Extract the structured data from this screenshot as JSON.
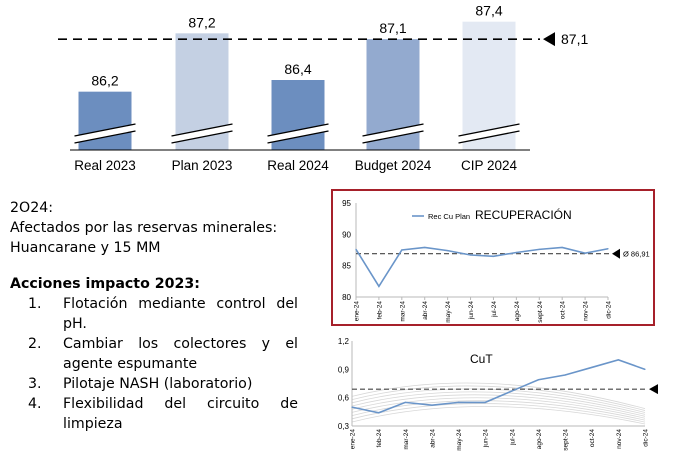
{
  "text": {
    "year_heading": "2O24:",
    "affected_text": "Afectados por las reservas minerales: Huancarane y 15 MM",
    "actions_heading": "Acciones impacto 2023:",
    "actions": [
      {
        "number": "1.",
        "text": "Flotación mediante control del pH."
      },
      {
        "number": "2.",
        "text": "Cambiar los colectores y el agente espumante"
      },
      {
        "number": "3.",
        "text": "Pilotaje NASH (laboratorio)"
      },
      {
        "number": "4.",
        "text": "Flexibilidad del circuito de limpieza"
      }
    ]
  },
  "chart_data": [
    {
      "type": "bar",
      "categories": [
        "Real 2023",
        "Plan 2023",
        "Real 2024",
        "Budget 2024",
        "CIP 2024"
      ],
      "values": [
        86.2,
        87.2,
        86.4,
        87.1,
        87.4
      ],
      "value_labels": [
        "86,2",
        "87,2",
        "86,4",
        "87,1",
        "87,4"
      ],
      "colors": [
        "#6c8ebf",
        "#c4d0e3",
        "#6c8ebf",
        "#93aacf",
        "#e3e9f3"
      ],
      "reference_line": {
        "value": 87.1,
        "label": "87,1"
      },
      "axis_break": true,
      "ylim": [
        85.2,
        87.6
      ]
    },
    {
      "type": "line",
      "title": "RECUPERACIÓN",
      "x": [
        "ene-24",
        "feb-24",
        "mar-24",
        "abr-24",
        "may-24",
        "jun-24",
        "jul-24",
        "ago-24",
        "sept-24",
        "oct-24",
        "nov-24",
        "dic-24"
      ],
      "series": [
        {
          "name": "Rec Cu Plan",
          "values": [
            87.6,
            81.7,
            87.5,
            87.9,
            87.4,
            86.7,
            86.5,
            87.1,
            87.6,
            87.9,
            87.0,
            87.7
          ],
          "color": "#6a95c9"
        }
      ],
      "reference_line": {
        "value": 86.91,
        "label": "Ø 86,91"
      },
      "ylim": [
        80,
        95
      ],
      "yticks": [
        80,
        85,
        90,
        95
      ],
      "grid": false
    },
    {
      "type": "line",
      "title": "CuT",
      "x": [
        "ene-24",
        "feb-24",
        "mar-24",
        "abr-24",
        "may-24",
        "jun-24",
        "jul-24",
        "ago-24",
        "sept-24",
        "oct-24",
        "nov-24",
        "dic-24"
      ],
      "series": [
        {
          "values": [
            0.5,
            0.44,
            0.55,
            0.52,
            0.55,
            0.55,
            0.67,
            0.79,
            0.84,
            0.92,
            1.0,
            0.9
          ],
          "color": "#6a95c9"
        }
      ],
      "reference_line": {
        "value": 0.69
      },
      "ylim": [
        0.3,
        1.2
      ],
      "yticks": [
        "0,3",
        "0,6",
        "0,9",
        "1,2"
      ],
      "grid": false
    }
  ]
}
